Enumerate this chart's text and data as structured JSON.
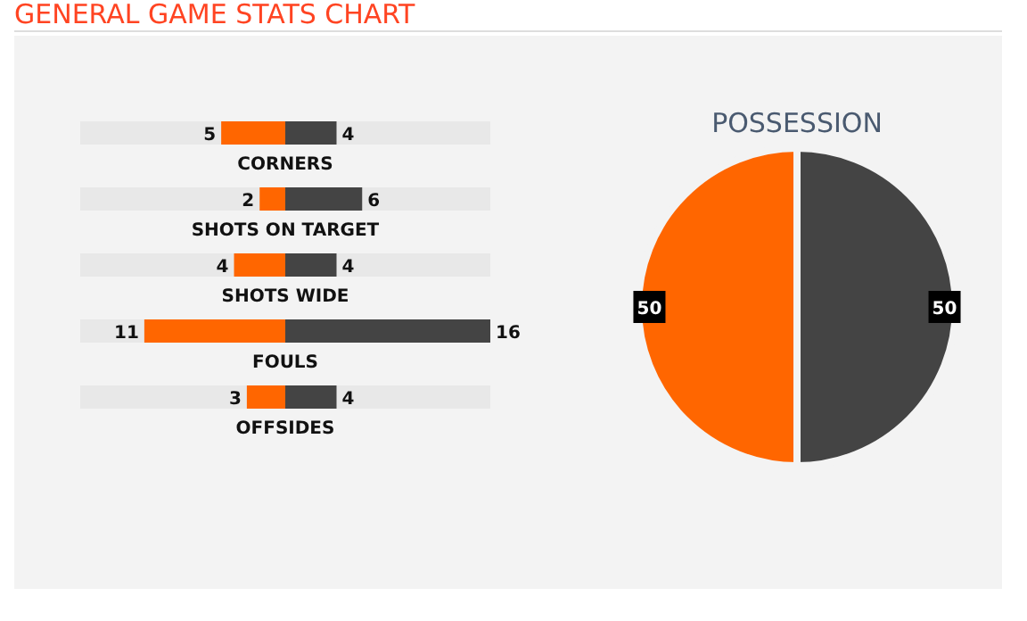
{
  "chart_data": [
    {
      "type": "bar",
      "title": "GENERAL GAME STATS CHART",
      "orientation": "horizontal",
      "categories": [
        "CORNERS",
        "SHOTS ON TARGET",
        "SHOTS WIDE",
        "FOULS",
        "OFFSIDES"
      ],
      "series": [
        {
          "color": "#ff6600",
          "values": [
            5,
            2,
            4,
            11,
            3
          ]
        }
      ],
      "tick_labels": "y",
      "data_labels": true
    },
    {
      "type": "bar",
      "orientation": "horizontal",
      "categories": [
        null,
        null,
        null,
        null,
        null
      ],
      "series": [
        {
          "color": "#444444",
          "values": [
            4,
            6,
            4,
            16,
            4
          ]
        }
      ],
      "xlim": [
        0,
        16
      ],
      "tick_labels": false,
      "data_labels": true
    },
    {
      "type": "pie",
      "title": "POSSESSION",
      "categories": [
        null,
        null
      ],
      "values": [
        50,
        50
      ],
      "colors": [
        "#ff6600",
        "#444444"
      ],
      "data_labels": true
    }
  ]
}
